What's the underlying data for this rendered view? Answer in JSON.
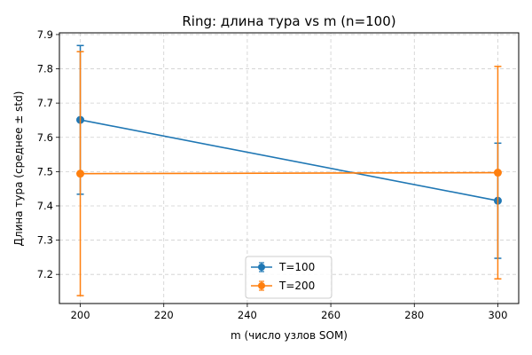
{
  "chart_data": {
    "type": "line",
    "title": "Ring: длина тура vs m (n=100)",
    "xlabel": "m (число узлов SOM)",
    "ylabel": "Длина тура (среднее ± std)",
    "xlim": [
      195,
      305
    ],
    "ylim": [
      7.115,
      7.905
    ],
    "xticks": [
      200,
      220,
      240,
      260,
      280,
      300
    ],
    "yticks": [
      7.2,
      7.3,
      7.4,
      7.5,
      7.6,
      7.7,
      7.8,
      7.9
    ],
    "grid": true,
    "legend_position": "lower-center",
    "series": [
      {
        "name": "T=100",
        "color": "#1f77b4",
        "x": [
          200,
          300
        ],
        "y": [
          7.651,
          7.415
        ],
        "yerr": [
          0.217,
          0.168
        ]
      },
      {
        "name": "T=200",
        "color": "#ff7f0e",
        "x": [
          200,
          300
        ],
        "y": [
          7.494,
          7.497
        ],
        "yerr": [
          0.356,
          0.31
        ]
      }
    ]
  }
}
